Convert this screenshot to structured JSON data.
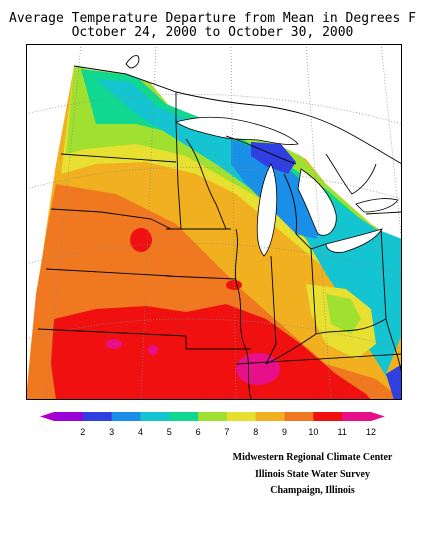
{
  "title": {
    "line1": "Average Temperature Departure from Mean in Degrees F",
    "line2": "October 24, 2000 to October 30, 2000"
  },
  "legend": {
    "ticks": [
      "2",
      "3",
      "4",
      "5",
      "6",
      "7",
      "8",
      "9",
      "10",
      "11",
      "12"
    ],
    "colors": [
      "#9b00d9",
      "#2f3fe0",
      "#1a8fe8",
      "#14c4d0",
      "#10d890",
      "#a0e030",
      "#e8e030",
      "#f0b020",
      "#f07820",
      "#f01010",
      "#e8108a"
    ],
    "end_left_color": "#b000c8",
    "end_right_color": "#e8108a"
  },
  "map": {
    "background_colors": {
      "water": "#ffffff",
      "grid": "#888888",
      "borders": "#000000"
    }
  },
  "credits": {
    "line1": "Midwestern Regional Climate Center",
    "line2": "Illinois State Water Survey",
    "line3": "Champaign, Illinois"
  }
}
